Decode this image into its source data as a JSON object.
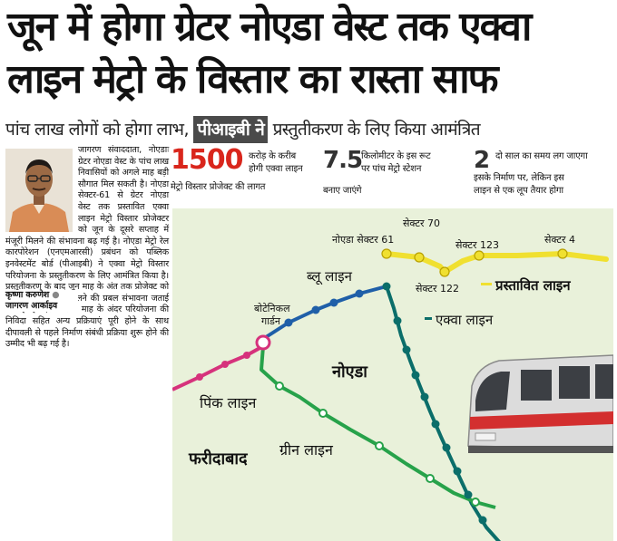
{
  "headline": {
    "line1": "जून में होगा ग्रेटर नोएडा वेस्ट तक एक्वा",
    "line2": "लाइन मेट्रो के विस्तार का रास्ता साफ"
  },
  "subheadline": {
    "part1": "पांच लाख लोगों को होगा लाभ,",
    "highlight": "पीआइबी ने",
    "part2": "प्रस्तुतीकरण  के लिए किया आमंत्रित"
  },
  "article": {
    "lead": "जागरण संवाददाता, नोएडाः ग्रेटर नोएडा वेस्ट के पांच लाख निवासियों को अगले माह बड़ी सौगात मिल सकती है। नोएडा सेक्टर-61 से ग्रेटर नोएडा वेस्ट तक प्रस्तावित एक्वा लाइन मेट्रो विस्तार प्रोजेक्टर को जून के दूसरे सप्ताह में मंजूरी मिलने की संभावना बढ़ गई है। नोएडा मेट्रो रेल कारपोरेशन (एनएमआरसी) प्रबंधन को पब्लिक इनवेस्टमेंट बोर्ड (पीआइबी) ने एक्वा मेट्रो विस्तार परियोजना के प्रस्तुतीकरण के लिए आमंत्रित किया है। प्रस्तुतीकरण के बाद जून माह के अंत तक प्रोजेक्ट को निर्माण की अनुमति मिलने की प्रबल संभावना जताई जा रही है। ऐसे में तीन माह के अंदर परियोजना की निविदा सहित अन्य प्रक्रियाएं पूरी होने के साथ दीपावली से पहले निर्माण संबंधी प्रक्रिया शुरू होने की उम्मीद भी बढ़ गई है।",
    "byline_name": "कृष्णा करुणेश",
    "byline_org": "जागरण आर्काइव"
  },
  "stats": [
    {
      "value": "1500",
      "text1": "करोड़ के करीब",
      "text2": "होगी एक्वा लाइन",
      "text3": "मेट्रो विस्तार प्रोजेक्ट की लागत"
    },
    {
      "value": "7.5",
      "text1": "किलोमीटर के इस रूट",
      "text2": "पर पांच मेट्रो स्टेशन",
      "text3": "बनाए जाएंगे"
    },
    {
      "value": "2",
      "text1": "दो साल का समय लग जाएगा",
      "text2": "इसके निर्माण पर, लेकिन इस",
      "text3": "लाइन से एक लूप तैयार होगा"
    }
  ],
  "map": {
    "stations": {
      "noida_sector_61": "नोएडा सेक्टर 61",
      "sector_70": "सेक्टर 70",
      "sector_122": "सेक्टर 122",
      "sector_123": "सेक्टर 123",
      "sector_4": "सेक्टर 4",
      "botanical_1": "बोटेनिकल",
      "botanical_2": "गार्डन"
    },
    "lines": {
      "blue": "ब्लू लाइन",
      "aqua": "एक्वा लाइन",
      "pink": "पिंक लाइन",
      "green": "ग्रीन लाइन",
      "proposed": "प्रस्तावित लाइन"
    },
    "areas": {
      "noida": "नोएडा",
      "faridabad": "फरीदाबाद"
    },
    "colors": {
      "background": "#e9f1da",
      "blue_line": "#1f5fa8",
      "aqua_line": "#0b6e6a",
      "pink_line": "#d6327c",
      "green_line": "#27a24a",
      "proposed_line": "#f0e030"
    }
  }
}
